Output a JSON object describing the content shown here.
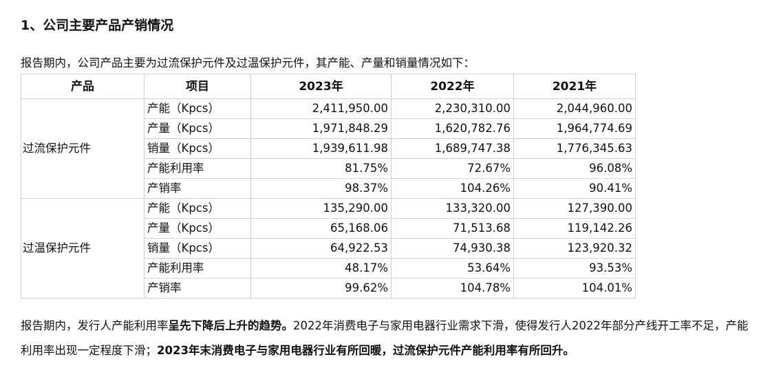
{
  "title": "1、公司主要产品产销情况",
  "intro": "报告期内，公司产品主要为过流保护元件及过温保护元件，其产能、产量和销量情况如下：",
  "table": {
    "headers": [
      "产品",
      "项目",
      "2023年",
      "2022年",
      "2021年"
    ],
    "groups": [
      {
        "product": "过流保护元件",
        "rows": [
          {
            "item": "产能（Kpcs）",
            "v2023": "2,411,950.00",
            "v2022": "2,230,310.00",
            "v2021": "2,044,960.00"
          },
          {
            "item": "产量（Kpcs）",
            "v2023": "1,971,848.29",
            "v2022": "1,620,782.76",
            "v2021": "1,964,774.69"
          },
          {
            "item": "销量（Kpcs）",
            "v2023": "1,939,611.98",
            "v2022": "1,689,747.38",
            "v2021": "1,776,345.63"
          },
          {
            "item": "产能利用率",
            "v2023": "81.75%",
            "v2022": "72.67%",
            "v2021": "96.08%"
          },
          {
            "item": "产销率",
            "v2023": "98.37%",
            "v2022": "104.26%",
            "v2021": "90.41%"
          }
        ]
      },
      {
        "product": "过温保护元件",
        "rows": [
          {
            "item": "产能（Kpcs）",
            "v2023": "135,290.00",
            "v2022": "133,320.00",
            "v2021": "127,390.00"
          },
          {
            "item": "产量（Kpcs）",
            "v2023": "65,168.06",
            "v2022": "71,513.68",
            "v2021": "119,142.26"
          },
          {
            "item": "销量（Kpcs）",
            "v2023": "64,922.53",
            "v2022": "74,930.38",
            "v2021": "123,920.32"
          },
          {
            "item": "产能利用率",
            "v2023": "48.17%",
            "v2022": "53.64%",
            "v2021": "93.53%"
          },
          {
            "item": "产销率",
            "v2023": "99.62%",
            "v2022": "104.78%",
            "v2021": "104.01%"
          }
        ]
      }
    ]
  },
  "paragraph": {
    "p1": "报告期内，发行人产能利用率",
    "p2_bold": "呈先下降后上升的趋势。",
    "p3": "2022年消费电子与家用电器行业需求下滑，使得发行人2022年部分产线开工率不足，产能利用率出现一定程度下滑；",
    "p4_bold": "2023年末消费电子与家用电器行业有所回暖，过流保护元件产能利用率有所回升。"
  }
}
